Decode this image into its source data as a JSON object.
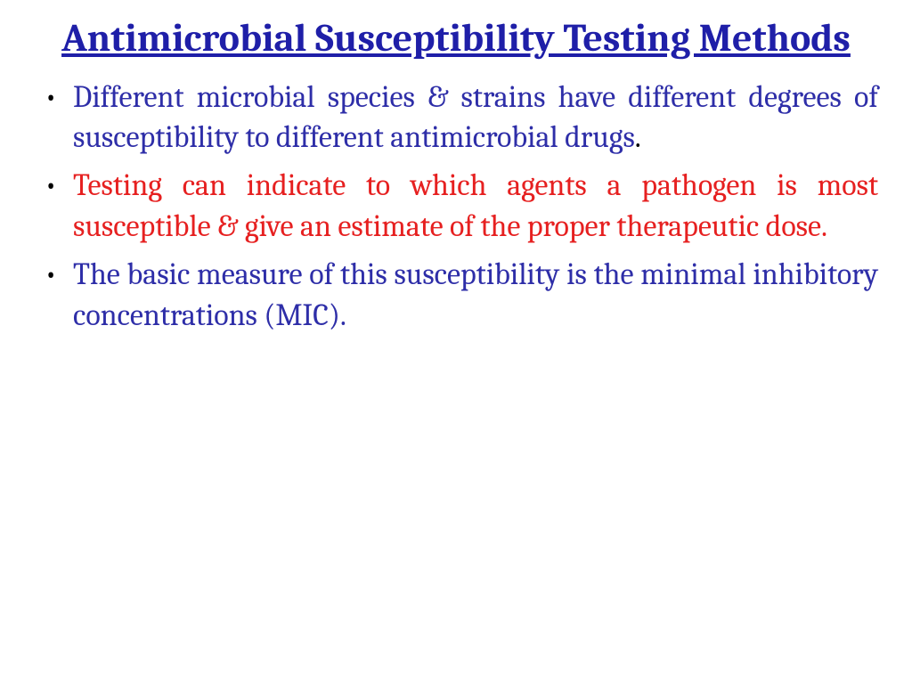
{
  "slide": {
    "title": "Antimicrobial Susceptibility Testing Methods",
    "title_color": "#1f1fa8",
    "title_fontsize": 44,
    "title_fontweight": 700,
    "background_color": "#ffffff",
    "body_fontsize": 34,
    "body_lineheight": 1.35,
    "bullets": [
      {
        "text_main": "Different microbial species & strains have different degrees of susceptibility to different antimicrobial drugs",
        "text_main_color": "#2e2ea8",
        "trailing_dot": ".",
        "trailing_dot_color": "#000000"
      },
      {
        "text_main": "Testing can indicate to which agents a pathogen is most susceptible & give an estimate of the proper therapeutic dose.",
        "text_main_color": "#e62020",
        "trailing_dot": "",
        "trailing_dot_color": "#000000"
      },
      {
        "text_main": "The basic measure of this susceptibility is the minimal inhibitory concentrations (MIC).",
        "text_main_color": "#2e2ea8",
        "trailing_dot": "",
        "trailing_dot_color": "#000000"
      }
    ]
  }
}
